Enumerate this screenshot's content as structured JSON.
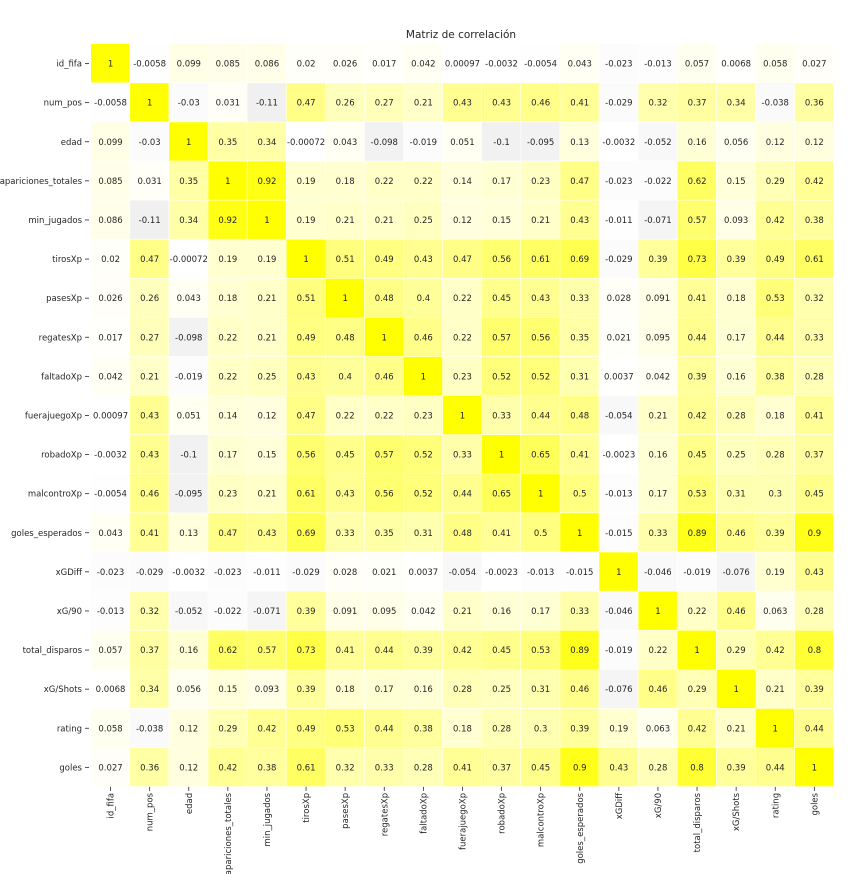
{
  "chart_data": {
    "type": "heatmap",
    "title": "Matriz de correlación",
    "labels": [
      "id_fifa",
      "num_pos",
      "edad",
      "apariciones_totales",
      "min_jugados",
      "tirosXp",
      "pasesXp",
      "regatesXp",
      "faltadoXp",
      "fuerajuegoXp",
      "robadoXp",
      "malcontroXp",
      "goles_esperados",
      "xGDiff",
      "xG/90",
      "total_disparos",
      "xG/Shots",
      "rating",
      "goles"
    ],
    "matrix": [
      [
        "1",
        "-0.0058",
        "0.099",
        "0.085",
        "0.086",
        "0.02",
        "0.026",
        "0.017",
        "0.042",
        "0.00097",
        "-0.0032",
        "-0.0054",
        "0.043",
        "-0.023",
        "-0.013",
        "0.057",
        "0.0068",
        "0.058",
        "0.027"
      ],
      [
        "-0.0058",
        "1",
        "-0.03",
        "0.031",
        "-0.11",
        "0.47",
        "0.26",
        "0.27",
        "0.21",
        "0.43",
        "0.43",
        "0.46",
        "0.41",
        "-0.029",
        "0.32",
        "0.37",
        "0.34",
        "-0.038",
        "0.36"
      ],
      [
        "0.099",
        "-0.03",
        "1",
        "0.35",
        "0.34",
        "-0.00072",
        "0.043",
        "-0.098",
        "-0.019",
        "0.051",
        "-0.1",
        "-0.095",
        "0.13",
        "-0.0032",
        "-0.052",
        "0.16",
        "0.056",
        "0.12",
        "0.12"
      ],
      [
        "0.085",
        "0.031",
        "0.35",
        "1",
        "0.92",
        "0.19",
        "0.18",
        "0.22",
        "0.22",
        "0.14",
        "0.17",
        "0.23",
        "0.47",
        "-0.023",
        "-0.022",
        "0.62",
        "0.15",
        "0.29",
        "0.42"
      ],
      [
        "0.086",
        "-0.11",
        "0.34",
        "0.92",
        "1",
        "0.19",
        "0.21",
        "0.21",
        "0.25",
        "0.12",
        "0.15",
        "0.21",
        "0.43",
        "-0.011",
        "-0.071",
        "0.57",
        "0.093",
        "0.42",
        "0.38"
      ],
      [
        "0.02",
        "0.47",
        "-0.00072",
        "0.19",
        "0.19",
        "1",
        "0.51",
        "0.49",
        "0.43",
        "0.47",
        "0.56",
        "0.61",
        "0.69",
        "-0.029",
        "0.39",
        "0.73",
        "0.39",
        "0.49",
        "0.61"
      ],
      [
        "0.026",
        "0.26",
        "0.043",
        "0.18",
        "0.21",
        "0.51",
        "1",
        "0.48",
        "0.4",
        "0.22",
        "0.45",
        "0.43",
        "0.33",
        "0.028",
        "0.091",
        "0.41",
        "0.18",
        "0.53",
        "0.32"
      ],
      [
        "0.017",
        "0.27",
        "-0.098",
        "0.22",
        "0.21",
        "0.49",
        "0.48",
        "1",
        "0.46",
        "0.22",
        "0.57",
        "0.56",
        "0.35",
        "0.021",
        "0.095",
        "0.44",
        "0.17",
        "0.44",
        "0.33"
      ],
      [
        "0.042",
        "0.21",
        "-0.019",
        "0.22",
        "0.25",
        "0.43",
        "0.4",
        "0.46",
        "1",
        "0.23",
        "0.52",
        "0.52",
        "0.31",
        "0.0037",
        "0.042",
        "0.39",
        "0.16",
        "0.38",
        "0.28"
      ],
      [
        "0.00097",
        "0.43",
        "0.051",
        "0.14",
        "0.12",
        "0.47",
        "0.22",
        "0.22",
        "0.23",
        "1",
        "0.33",
        "0.44",
        "0.48",
        "-0.054",
        "0.21",
        "0.42",
        "0.28",
        "0.18",
        "0.41"
      ],
      [
        "-0.0032",
        "0.43",
        "-0.1",
        "0.17",
        "0.15",
        "0.56",
        "0.45",
        "0.57",
        "0.52",
        "0.33",
        "1",
        "0.65",
        "0.41",
        "-0.0023",
        "0.16",
        "0.45",
        "0.25",
        "0.28",
        "0.37"
      ],
      [
        "-0.0054",
        "0.46",
        "-0.095",
        "0.23",
        "0.21",
        "0.61",
        "0.43",
        "0.56",
        "0.52",
        "0.44",
        "0.65",
        "1",
        "0.5",
        "-0.013",
        "0.17",
        "0.53",
        "0.31",
        "0.3",
        "0.45"
      ],
      [
        "0.043",
        "0.41",
        "0.13",
        "0.47",
        "0.43",
        "0.69",
        "0.33",
        "0.35",
        "0.31",
        "0.48",
        "0.41",
        "0.5",
        "1",
        "-0.015",
        "0.33",
        "0.89",
        "0.46",
        "0.39",
        "0.9"
      ],
      [
        "-0.023",
        "-0.029",
        "-0.0032",
        "-0.023",
        "-0.011",
        "-0.029",
        "0.028",
        "0.021",
        "0.0037",
        "-0.054",
        "-0.0023",
        "-0.013",
        "-0.015",
        "1",
        "-0.046",
        "-0.019",
        "-0.076",
        "0.19",
        "0.43"
      ],
      [
        "-0.013",
        "0.32",
        "-0.052",
        "-0.022",
        "-0.071",
        "0.39",
        "0.091",
        "0.095",
        "0.042",
        "0.21",
        "0.16",
        "0.17",
        "0.33",
        "-0.046",
        "1",
        "0.22",
        "0.46",
        "0.063",
        "0.28"
      ],
      [
        "0.057",
        "0.37",
        "0.16",
        "0.62",
        "0.57",
        "0.73",
        "0.41",
        "0.44",
        "0.39",
        "0.42",
        "0.45",
        "0.53",
        "0.89",
        "-0.019",
        "0.22",
        "1",
        "0.29",
        "0.42",
        "0.8"
      ],
      [
        "0.0068",
        "0.34",
        "0.056",
        "0.15",
        "0.093",
        "0.39",
        "0.18",
        "0.17",
        "0.16",
        "0.28",
        "0.25",
        "0.31",
        "0.46",
        "-0.076",
        "0.46",
        "0.29",
        "1",
        "0.21",
        "0.39"
      ],
      [
        "0.058",
        "-0.038",
        "0.12",
        "0.29",
        "0.42",
        "0.49",
        "0.53",
        "0.44",
        "0.38",
        "0.18",
        "0.28",
        "0.3",
        "0.39",
        "0.19",
        "0.063",
        "0.42",
        "0.21",
        "1",
        "0.44"
      ],
      [
        "0.027",
        "0.36",
        "0.12",
        "0.42",
        "0.38",
        "0.61",
        "0.32",
        "0.33",
        "0.28",
        "0.41",
        "0.37",
        "0.45",
        "0.9",
        "0.43",
        "0.28",
        "0.8",
        "0.39",
        "0.44",
        "1"
      ]
    ],
    "colors": {
      "low": "#f0f0f0",
      "mid": "#ffffff",
      "high": "#ffff00",
      "text": "#262626"
    }
  }
}
